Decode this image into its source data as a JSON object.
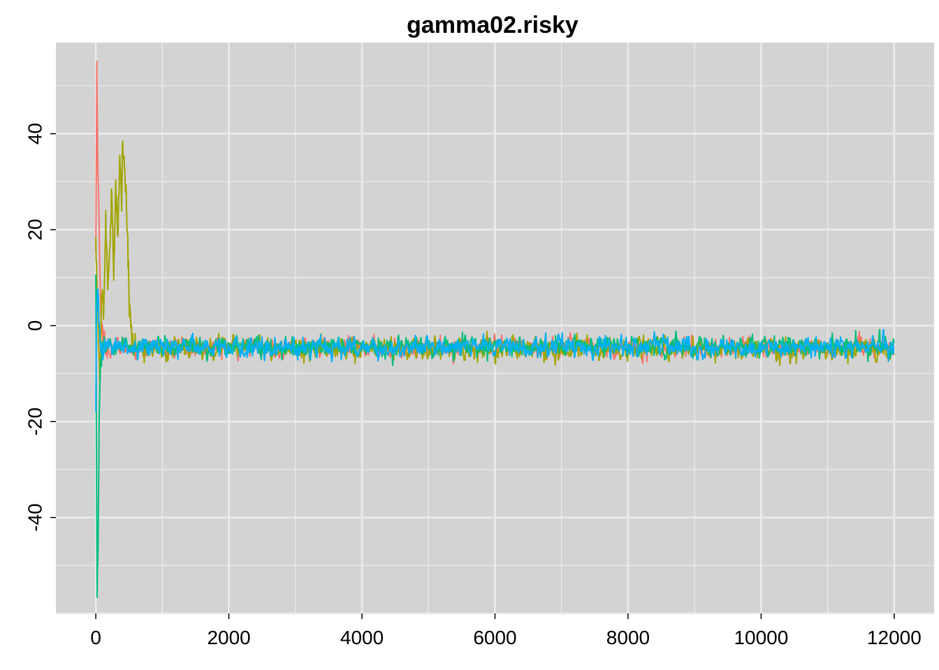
{
  "chart_data": {
    "type": "line",
    "title": "gamma02.risky",
    "xlabel": "",
    "ylabel": "",
    "xlim": [
      -600,
      12600
    ],
    "ylim": [
      -60,
      59
    ],
    "x_ticks": [
      0,
      2000,
      4000,
      6000,
      8000,
      10000,
      12000
    ],
    "y_ticks": [
      -40,
      -20,
      0,
      20,
      40
    ],
    "x_tick_labels": [
      "0",
      "2000",
      "4000",
      "6000",
      "8000",
      "10000",
      "12000"
    ],
    "y_tick_labels": [
      "-40",
      "-20",
      "0",
      "20",
      "40"
    ],
    "grid": true,
    "background": "#d3d3d3",
    "legend": "none",
    "n_iterations": 12000,
    "series": [
      {
        "color": "#f8766d",
        "stationary_mean": -4.6,
        "stationary_spread": 0.9,
        "initial_path": [
          [
            0,
            15
          ],
          [
            15,
            54
          ],
          [
            30,
            35
          ],
          [
            50,
            20
          ],
          [
            70,
            5
          ],
          [
            100,
            -2
          ],
          [
            140,
            -4.6
          ]
        ]
      },
      {
        "color": "#a3a500",
        "stationary_mean": -4.8,
        "stationary_spread": 1.0,
        "initial_path": [
          [
            0,
            18
          ],
          [
            30,
            2
          ],
          [
            60,
            -12
          ],
          [
            90,
            8
          ],
          [
            120,
            3
          ],
          [
            150,
            22
          ],
          [
            180,
            8
          ],
          [
            210,
            15
          ],
          [
            240,
            28
          ],
          [
            270,
            10
          ],
          [
            300,
            30
          ],
          [
            330,
            18
          ],
          [
            360,
            36
          ],
          [
            390,
            25
          ],
          [
            400,
            39
          ],
          [
            420,
            35
          ],
          [
            450,
            30
          ],
          [
            470,
            22
          ],
          [
            500,
            6
          ],
          [
            530,
            -1
          ],
          [
            560,
            -4.8
          ]
        ]
      },
      {
        "color": "#00bf7d",
        "stationary_mean": -4.3,
        "stationary_spread": 0.9,
        "initial_path": [
          [
            0,
            12
          ],
          [
            10,
            -30
          ],
          [
            20,
            -55
          ],
          [
            35,
            -45
          ],
          [
            50,
            -20
          ],
          [
            70,
            -8
          ],
          [
            110,
            -4.3
          ]
        ]
      },
      {
        "color": "#00b0f6",
        "stationary_mean": -4.5,
        "stationary_spread": 0.9,
        "initial_path": [
          [
            0,
            -20
          ],
          [
            10,
            3
          ],
          [
            25,
            8
          ],
          [
            40,
            5
          ],
          [
            60,
            -3
          ],
          [
            90,
            -6
          ],
          [
            130,
            -4.5
          ]
        ]
      }
    ]
  }
}
